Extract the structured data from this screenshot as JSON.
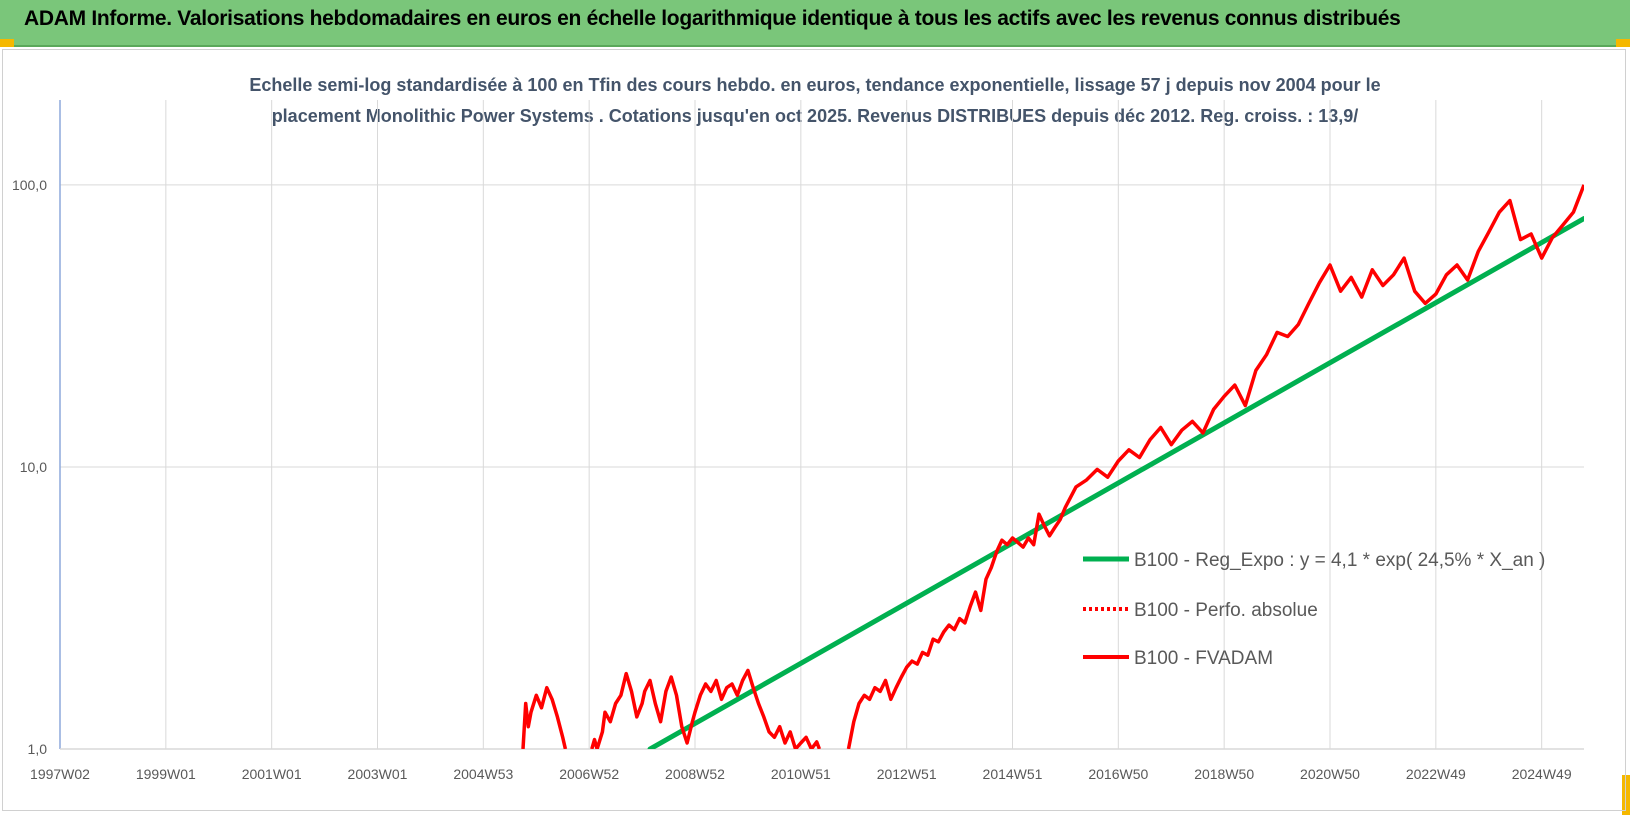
{
  "header": {
    "title": "ADAM Informe. Valorisations hebdomadaires en euros en échelle logarithmique identique à tous les actifs avec les revenus connus distribués"
  },
  "colors": {
    "header_bg": "#7ac67a",
    "corner_accent": "#f5b800",
    "subtitle_text": "#44546a",
    "regression_line": "#00b050",
    "fvadam_line": "#ff0000",
    "perfo_line": "#ff0000",
    "grid": "#d9d9d9"
  },
  "chart_data": {
    "type": "line",
    "title_line1": "Echelle semi-log standardisée à 100 en Tfin des cours hebdo. en euros, tendance exponentielle, lissage 57 j depuis nov 2004 pour le",
    "title_line2": "placement Monolithic Power Systems . Cotations jusqu'en oct 2025. Revenus DISTRIBUES depuis déc 2012. Reg. croiss. : 13,9/",
    "y_scale": "log",
    "ylim": [
      1,
      200
    ],
    "xlim": [
      1997.0,
      2025.8
    ],
    "y_ticks": [
      {
        "value": 1,
        "label": "1,0"
      },
      {
        "value": 10,
        "label": "10,0"
      },
      {
        "value": 100,
        "label": "100,0"
      }
    ],
    "x_ticks": [
      {
        "value": 1997.0,
        "label": "1997W02"
      },
      {
        "value": 1999.0,
        "label": "1999W01"
      },
      {
        "value": 2001.0,
        "label": "2001W01"
      },
      {
        "value": 2003.0,
        "label": "2003W01"
      },
      {
        "value": 2005.0,
        "label": "2004W53"
      },
      {
        "value": 2007.0,
        "label": "2006W52"
      },
      {
        "value": 2009.0,
        "label": "2008W52"
      },
      {
        "value": 2011.0,
        "label": "2010W51"
      },
      {
        "value": 2013.0,
        "label": "2012W51"
      },
      {
        "value": 2015.0,
        "label": "2014W51"
      },
      {
        "value": 2017.0,
        "label": "2016W50"
      },
      {
        "value": 2019.0,
        "label": "2018W50"
      },
      {
        "value": 2021.0,
        "label": "2020W50"
      },
      {
        "value": 2023.0,
        "label": "2022W49"
      },
      {
        "value": 2025.0,
        "label": "2024W49"
      }
    ],
    "grid": true,
    "legend_position": "right",
    "series": [
      {
        "name": "B100 - Reg_Expo : y = 4,1 * exp( 24,5% *  X_an )",
        "style": "solid",
        "color": "#00b050",
        "x": [
          2008.15,
          2025.8
        ],
        "y": [
          1.0,
          76
        ]
      },
      {
        "name": "B100 - Perfo. absolue",
        "style": "dotted",
        "color": "#ff0000",
        "x": [],
        "y": []
      },
      {
        "name": "B100 - FVADAM",
        "style": "solid",
        "color": "#ff0000",
        "segments": [
          {
            "x": [
              2005.75,
              2005.8,
              2005.85,
              2005.9,
              2006.0,
              2006.1,
              2006.2,
              2006.3,
              2006.4,
              2006.5,
              2006.55
            ],
            "y": [
              1.0,
              1.45,
              1.2,
              1.35,
              1.55,
              1.4,
              1.65,
              1.5,
              1.3,
              1.1,
              1.0
            ]
          },
          {
            "x": [
              2007.05,
              2007.1,
              2007.15,
              2007.25,
              2007.3,
              2007.4,
              2007.5,
              2007.6,
              2007.7,
              2007.8,
              2007.9,
              2008.0,
              2008.05,
              2008.15,
              2008.25,
              2008.35,
              2008.45,
              2008.55,
              2008.65,
              2008.75,
              2008.85,
              2008.95,
              2009.0,
              2009.1,
              2009.2,
              2009.3,
              2009.4,
              2009.5,
              2009.6,
              2009.7,
              2009.8,
              2009.9,
              2010.0,
              2010.1,
              2010.2,
              2010.3,
              2010.4,
              2010.5,
              2010.6,
              2010.7,
              2010.8,
              2010.9,
              2011.0,
              2011.1,
              2011.2,
              2011.3,
              2011.35
            ],
            "y": [
              1.0,
              1.08,
              1.0,
              1.15,
              1.35,
              1.25,
              1.45,
              1.55,
              1.85,
              1.6,
              1.3,
              1.45,
              1.6,
              1.75,
              1.45,
              1.25,
              1.6,
              1.8,
              1.55,
              1.2,
              1.05,
              1.25,
              1.35,
              1.55,
              1.7,
              1.6,
              1.75,
              1.5,
              1.65,
              1.7,
              1.55,
              1.75,
              1.9,
              1.65,
              1.45,
              1.3,
              1.15,
              1.1,
              1.2,
              1.05,
              1.15,
              1.0,
              1.05,
              1.1,
              1.0,
              1.06,
              1.0
            ]
          },
          {
            "x": [
              2011.9,
              2012.0,
              2012.1,
              2012.2,
              2012.3,
              2012.4,
              2012.5,
              2012.6,
              2012.7,
              2012.8,
              2012.9,
              2013.0,
              2013.1,
              2013.2,
              2013.3,
              2013.4,
              2013.5,
              2013.6,
              2013.7,
              2013.8,
              2013.9,
              2014.0,
              2014.1,
              2014.2,
              2014.3,
              2014.4,
              2014.5,
              2014.6,
              2014.7,
              2014.8,
              2014.9,
              2015.0,
              2015.1,
              2015.2,
              2015.3,
              2015.4,
              2015.5,
              2015.6,
              2015.7,
              2015.8,
              2015.9,
              2016.0,
              2016.2,
              2016.4,
              2016.6,
              2016.8,
              2017.0,
              2017.2,
              2017.4,
              2017.6,
              2017.8,
              2018.0,
              2018.2,
              2018.4,
              2018.6,
              2018.8,
              2019.0,
              2019.2,
              2019.4,
              2019.6,
              2019.8,
              2020.0,
              2020.2,
              2020.4,
              2020.6,
              2020.8,
              2021.0,
              2021.2,
              2021.4,
              2021.6,
              2021.8,
              2022.0,
              2022.2,
              2022.4,
              2022.6,
              2022.8,
              2023.0,
              2023.2,
              2023.4,
              2023.6,
              2023.8,
              2024.0,
              2024.2,
              2024.4,
              2024.6,
              2024.8,
              2025.0,
              2025.2,
              2025.4,
              2025.6,
              2025.8
            ],
            "y": [
              1.0,
              1.25,
              1.45,
              1.55,
              1.5,
              1.65,
              1.6,
              1.75,
              1.5,
              1.65,
              1.8,
              1.95,
              2.05,
              2.0,
              2.2,
              2.15,
              2.45,
              2.4,
              2.6,
              2.75,
              2.65,
              2.9,
              2.8,
              3.2,
              3.6,
              3.1,
              4.0,
              4.4,
              5.0,
              5.5,
              5.3,
              5.6,
              5.4,
              5.2,
              5.6,
              5.3,
              6.8,
              6.2,
              5.7,
              6.1,
              6.5,
              7.2,
              8.5,
              9.0,
              9.8,
              9.2,
              10.5,
              11.5,
              10.8,
              12.5,
              13.8,
              12.0,
              13.5,
              14.5,
              13.2,
              16.0,
              17.8,
              19.5,
              16.5,
              22.0,
              25.0,
              30.0,
              29.0,
              32.0,
              38.0,
              45.0,
              52.0,
              42.0,
              47.0,
              40.0,
              50.0,
              44.0,
              48.0,
              55.0,
              42.0,
              38.0,
              41.0,
              48.0,
              52.0,
              46.0,
              58.0,
              68.0,
              80.0,
              88.0,
              64.0,
              67.0,
              55.0,
              65.0,
              72.0,
              80.0,
              100.0
            ]
          }
        ]
      }
    ]
  }
}
